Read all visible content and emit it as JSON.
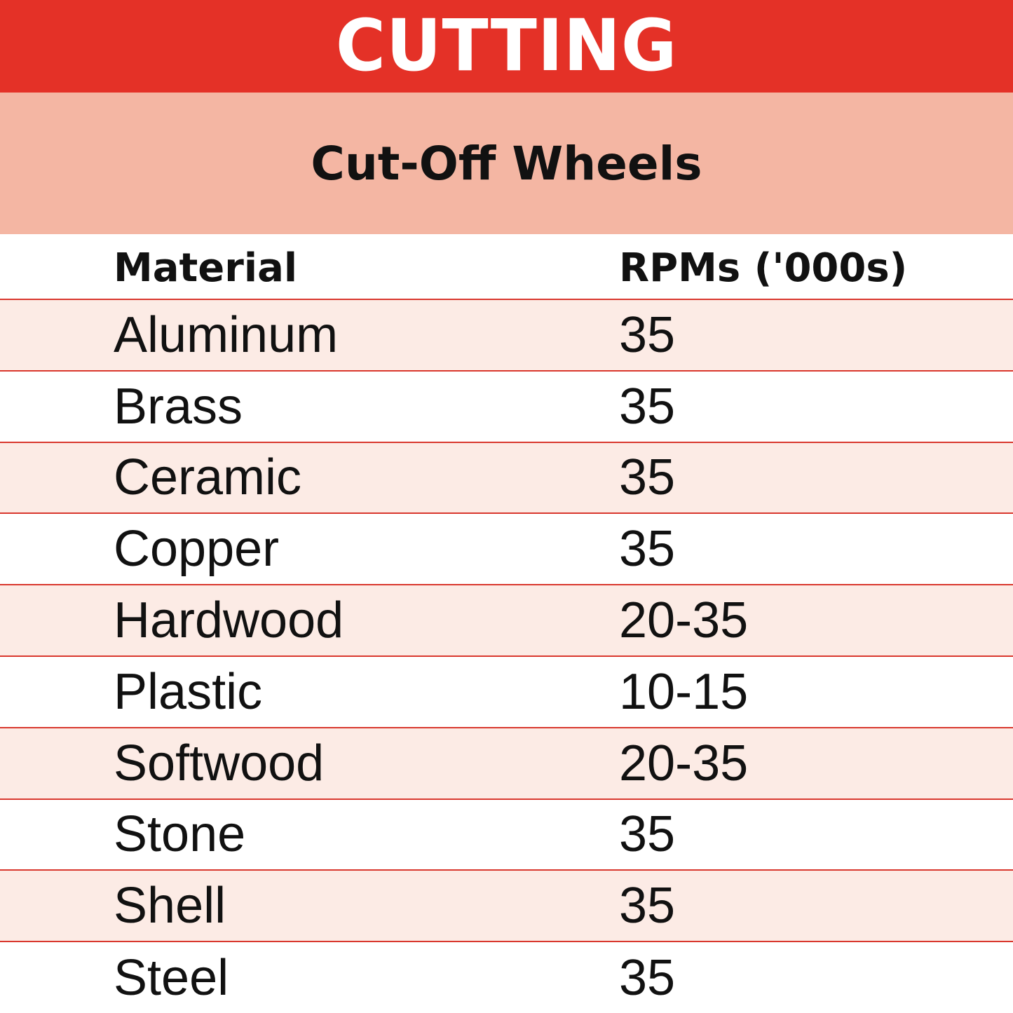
{
  "banner": {
    "title": "CUTTING"
  },
  "subheader": {
    "title": "Cut-Off Wheels"
  },
  "table": {
    "headers": {
      "material": "Material",
      "rpm": "RPMs ('000s)"
    },
    "rows": [
      {
        "material": "Aluminum",
        "rpm": "35"
      },
      {
        "material": "Brass",
        "rpm": "35"
      },
      {
        "material": "Ceramic",
        "rpm": "35"
      },
      {
        "material": "Copper",
        "rpm": "35"
      },
      {
        "material": "Hardwood",
        "rpm": "20-35"
      },
      {
        "material": "Plastic",
        "rpm": "10-15"
      },
      {
        "material": "Softwood",
        "rpm": "20-35"
      },
      {
        "material": "Stone",
        "rpm": "35"
      },
      {
        "material": "Shell",
        "rpm": "35"
      },
      {
        "material": "Steel",
        "rpm": "35"
      }
    ]
  },
  "colors": {
    "banner": "#e43127",
    "subheader": "#f4b6a3",
    "row_shade": "#fcebe5",
    "divider": "#d9372d"
  }
}
